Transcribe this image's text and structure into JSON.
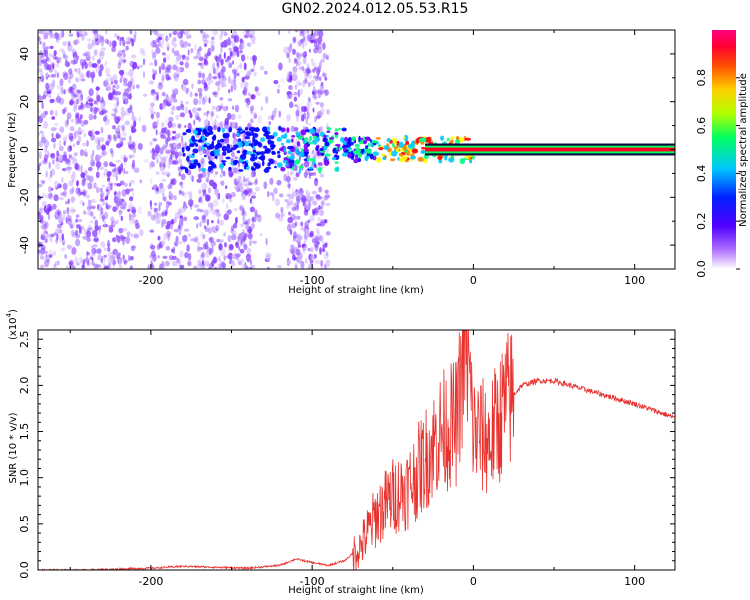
{
  "title": "GN02.2024.012.05.53.R15",
  "colors": {
    "snr_line": "#e8322e",
    "residual_line": "#000000"
  },
  "chart_data": [
    {
      "type": "heatmap",
      "xlabel": "Height of straight line (km)",
      "ylabel": "Frequency (Hz)",
      "xlim": [
        -270,
        125
      ],
      "ylim": [
        -50,
        50
      ],
      "xticks": [
        -200,
        -100,
        0,
        100
      ],
      "yticks": [
        -40,
        -20,
        0,
        20,
        40
      ],
      "colorbar": {
        "label": "Normalized spectral amplitude",
        "range": [
          0,
          1
        ],
        "ticks": [
          0.0,
          0.2,
          0.4,
          0.6,
          0.8
        ],
        "colormap": [
          "#ffffff",
          "#7b00ff",
          "#0000ff",
          "#00c8ff",
          "#00ff80",
          "#ffff00",
          "#ff8000",
          "#ff0000",
          "#ff0080"
        ]
      },
      "ridge_frequency_hz": 0
    },
    {
      "type": "line",
      "xlabel": "Height of straight line (km)",
      "ylabel": "SNR (10 * v/v)",
      "yscale_label": "(x10",
      "yscale_exp": "4",
      "xlim": [
        -270,
        125
      ],
      "ylim": [
        0,
        2.6
      ],
      "xticks": [
        -200,
        -100,
        0,
        100
      ],
      "yticks": [
        0.0,
        0.5,
        1.0,
        1.5,
        2.0,
        2.5
      ],
      "series": [
        {
          "x": [
            -270,
            -240,
            -200,
            -180,
            -160,
            -140,
            -120,
            -110,
            -100,
            -90,
            -80,
            -70,
            -60,
            -50,
            -40,
            -30,
            -20,
            -10,
            -5,
            0,
            10,
            20,
            30,
            40,
            50,
            60,
            80,
            100,
            125
          ],
          "values": [
            0.0,
            0.0,
            0.02,
            0.04,
            0.03,
            0.02,
            0.05,
            0.12,
            0.08,
            0.05,
            0.1,
            0.25,
            0.6,
            0.8,
            0.9,
            1.2,
            1.5,
            1.6,
            2.6,
            1.5,
            1.4,
            1.8,
            2.0,
            2.05,
            2.05,
            2.0,
            1.9,
            1.8,
            1.65
          ]
        }
      ]
    }
  ]
}
